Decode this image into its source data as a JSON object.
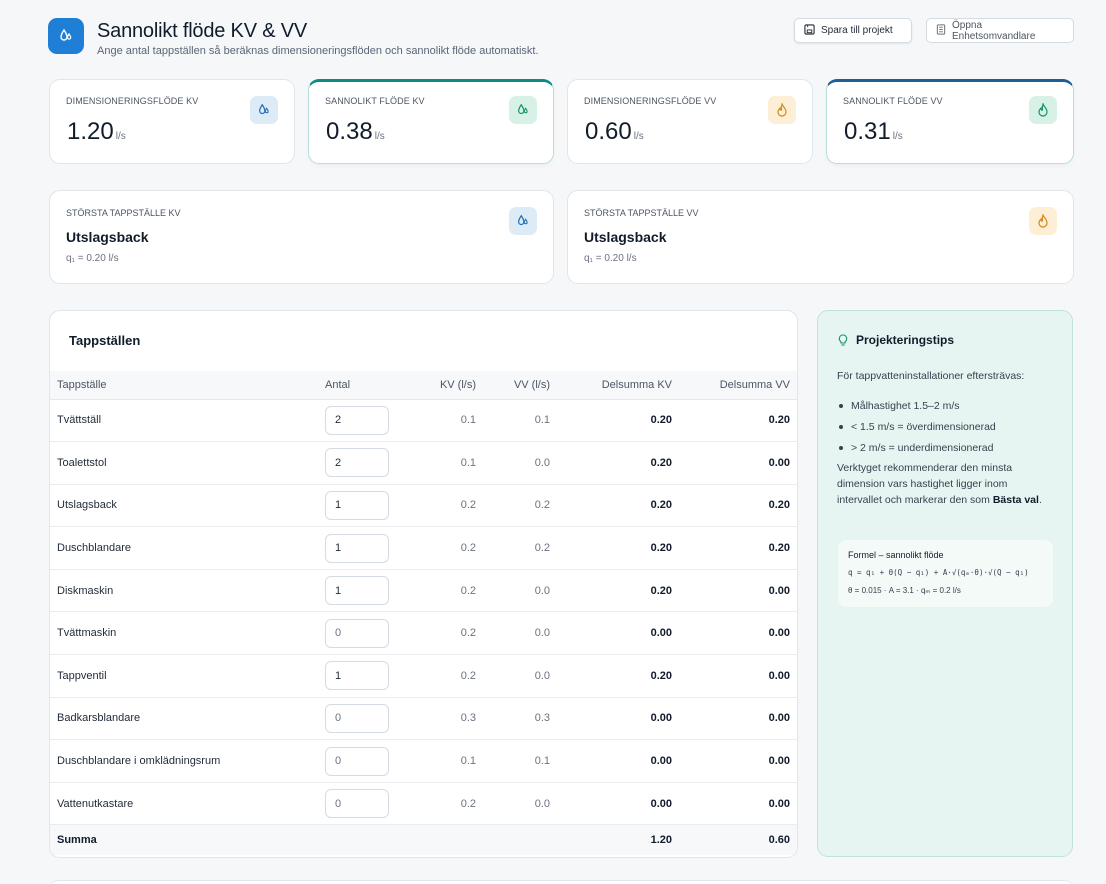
{
  "header": {
    "title": "Sannolikt flöde KV & VV",
    "subtitle": "Ange antal tappställen så beräknas dimensioneringsflöden och sannolikt flöde automatiskt.",
    "save_label": "Spara till projekt",
    "open_label": "Öppna Enhetsomvandlare",
    "app_icon": "water-drop-icon"
  },
  "stats": [
    {
      "label": "DIMENSIONERINGSFLÖDE KV",
      "value": "1.20",
      "unit": "l/s",
      "icon": "water-drop-icon",
      "color": "#1f7fd6"
    },
    {
      "label": "SANNOLIKT FLÖDE KV",
      "value": "0.38",
      "unit": "l/s",
      "icon": "water-drop-icon",
      "color": "#12946b"
    },
    {
      "label": "DIMENSIONERINGSFLÖDE VV",
      "value": "0.60",
      "unit": "l/s",
      "icon": "flame-icon",
      "color": "#e08a1e"
    },
    {
      "label": "SANNOLIKT FLÖDE VV",
      "value": "0.31",
      "unit": "l/s",
      "icon": "flame-icon",
      "color": "#12946b"
    }
  ],
  "largest": [
    {
      "label": "STÖRSTA TAPPSTÄLLE KV",
      "value": "Utslagsback",
      "sub": "q₁ = 0.20 l/s",
      "icon": "water-drop-icon"
    },
    {
      "label": "STÖRSTA TAPPSTÄLLE VV",
      "value": "Utslagsback",
      "sub": "q₁ = 0.20 l/s",
      "icon": "flame-icon"
    }
  ],
  "table": {
    "title": "Tappställen",
    "headers": [
      "Tappställe",
      "Antal",
      "KV (l/s)",
      "VV (l/s)",
      "Delsumma KV",
      "Delsumma VV"
    ],
    "rows": [
      {
        "name": "Tvättställ",
        "antal": "2",
        "kv": "0.1",
        "vv": "0.1",
        "dkv": "0.20",
        "dvv": "0.20"
      },
      {
        "name": "Toalettstol",
        "antal": "2",
        "kv": "0.1",
        "vv": "0.0",
        "dkv": "0.20",
        "dvv": "0.00"
      },
      {
        "name": "Utslagsback",
        "antal": "1",
        "kv": "0.2",
        "vv": "0.2",
        "dkv": "0.20",
        "dvv": "0.20"
      },
      {
        "name": "Duschblandare",
        "antal": "1",
        "kv": "0.2",
        "vv": "0.2",
        "dkv": "0.20",
        "dvv": "0.20"
      },
      {
        "name": "Diskmaskin",
        "antal": "1",
        "kv": "0.2",
        "vv": "0.0",
        "dkv": "0.20",
        "dvv": "0.00"
      },
      {
        "name": "Tvättmaskin",
        "antal": "0",
        "kv": "0.2",
        "vv": "0.0",
        "dkv": "0.00",
        "dvv": "0.00"
      },
      {
        "name": "Tappventil",
        "antal": "1",
        "kv": "0.2",
        "vv": "0.0",
        "dkv": "0.20",
        "dvv": "0.00"
      },
      {
        "name": "Badkarsblandare",
        "antal": "0",
        "kv": "0.3",
        "vv": "0.3",
        "dkv": "0.00",
        "dvv": "0.00"
      },
      {
        "name": "Duschblandare i omklädningsrum",
        "antal": "0",
        "kv": "0.1",
        "vv": "0.1",
        "dkv": "0.00",
        "dvv": "0.00"
      },
      {
        "name": "Vattenutkastare",
        "antal": "0",
        "kv": "0.2",
        "vv": "0.0",
        "dkv": "0.00",
        "dvv": "0.00"
      }
    ],
    "footer": {
      "label": "Summa",
      "dkv": "1.20",
      "dvv": "0.60"
    }
  },
  "tips": {
    "title": "Projekteringstips",
    "intro": "För tappvatteninstallationer eftersträvas:",
    "items": [
      "Målhastighet 1.5–2 m/s",
      "< 1.5 m/s = överdimensionerad",
      "> 2 m/s = underdimensionerad"
    ],
    "body": "Verktyget rekommenderar den minsta dimension vars hastighet ligger inom intervallet och markerar den som",
    "body_bold": "Bästa val",
    "formula_title": "Formel – sannolikt flöde",
    "formula": "q = q₁ + θ(Q − q₁) + A·√(qₘ·θ)·√(Q − q₁)",
    "formula_params": "θ = 0.015 · A = 3.1 · qₘ = 0.2 l/s"
  }
}
